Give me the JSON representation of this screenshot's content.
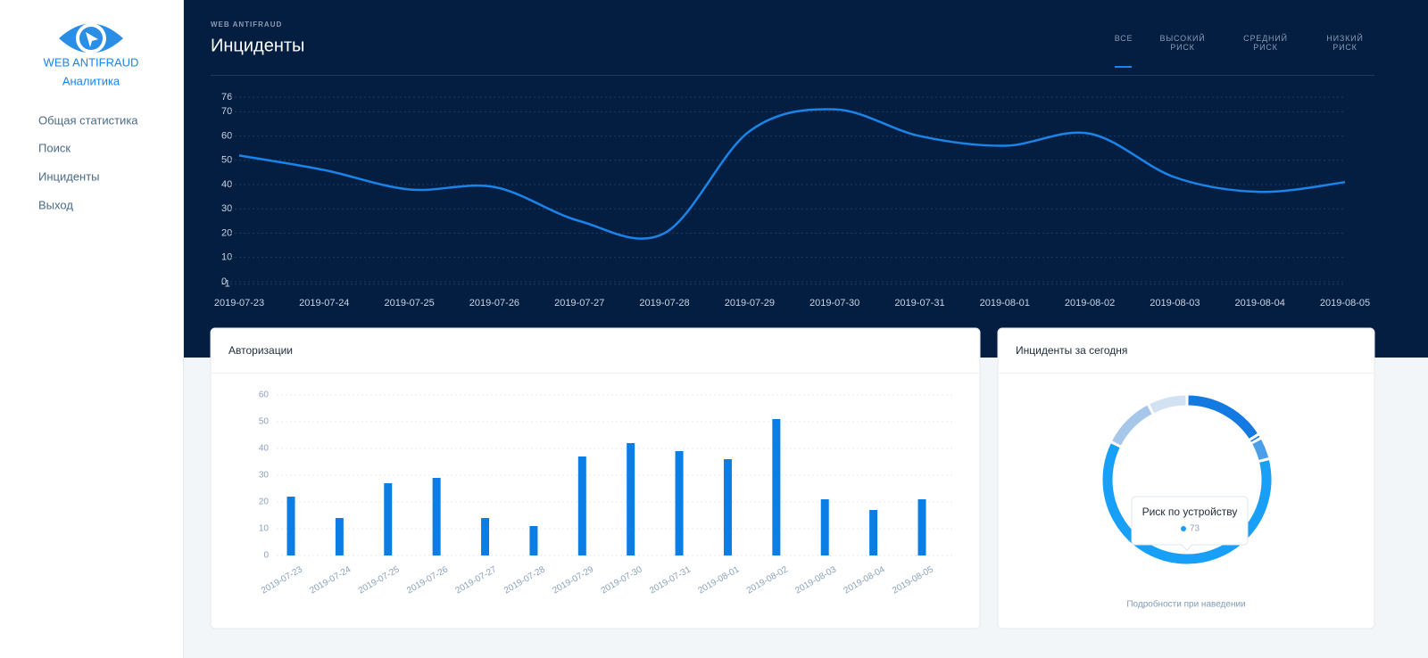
{
  "sidebar": {
    "logo": "WEB ANTIFRAUD",
    "subtitle": "Аналитика",
    "nav": [
      "Общая статистика",
      "Поиск",
      "Инциденты",
      "Выход"
    ]
  },
  "header": {
    "eyebrow": "WEB ANTIFRAUD",
    "title": "Инциденты",
    "tabs": [
      "ВСЕ",
      "ВЫСОКИЙ РИСК",
      "СРЕДНИЙ РИСК",
      "НИЗКИЙ РИСК"
    ]
  },
  "chart_data": [
    {
      "type": "line",
      "x": [
        "2019-07-23",
        "2019-07-24",
        "2019-07-25",
        "2019-07-26",
        "2019-07-27",
        "2019-07-28",
        "2019-07-29",
        "2019-07-30",
        "2019-07-31",
        "2019-08-01",
        "2019-08-02",
        "2019-08-03",
        "2019-08-04",
        "2019-08-05"
      ],
      "series": [
        {
          "color": "#1a84e8",
          "values": [
            52,
            46,
            38,
            39,
            25,
            20,
            62,
            71,
            60,
            56,
            61,
            43,
            37,
            41
          ]
        }
      ],
      "ylim": [
        -1,
        76
      ],
      "yticks": [
        -1,
        0,
        10,
        20,
        30,
        40,
        50,
        60,
        70,
        76
      ],
      "grid": true
    },
    {
      "type": "bar",
      "title": "Авторизации",
      "categories": [
        "2019-07-23",
        "2019-07-24",
        "2019-07-25",
        "2019-07-26",
        "2019-07-27",
        "2019-07-28",
        "2019-07-29",
        "2019-07-30",
        "2019-07-31",
        "2019-08-01",
        "2019-08-02",
        "2019-08-03",
        "2019-08-04",
        "2019-08-05"
      ],
      "values": [
        22,
        14,
        27,
        29,
        14,
        11,
        37,
        42,
        39,
        36,
        51,
        21,
        17,
        21
      ],
      "color": "#0b7ee6",
      "ylim": [
        0,
        60
      ],
      "yticks": [
        0,
        10,
        20,
        30,
        40,
        50,
        60
      ],
      "grid": true
    },
    {
      "type": "pie",
      "title": "Инциденты за сегодня",
      "categories": [
        null,
        null,
        null,
        "Риск по устройству",
        null,
        null
      ],
      "values": [
        19,
        1,
        5,
        73,
        12,
        9
      ],
      "colors": [
        "#1479e0",
        "#1479e0",
        "#4a9fe8",
        "#18a0f8",
        "#a6c6ea",
        "#d2e2f2"
      ],
      "footer": "Подробности при наведении"
    }
  ]
}
